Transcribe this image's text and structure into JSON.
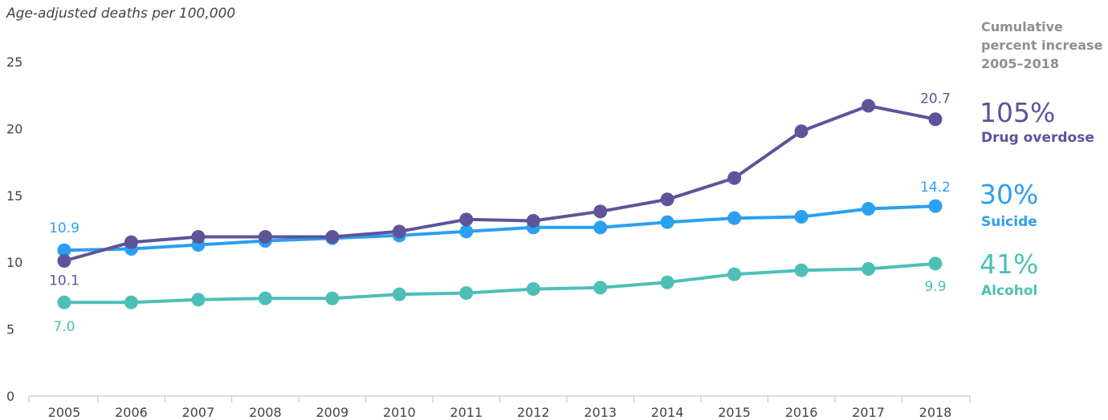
{
  "chart_data": {
    "type": "line",
    "ylabel": "Age-adjusted deaths per 100,000",
    "xlabel": "",
    "ylim": [
      0,
      25
    ],
    "yticks": [
      0,
      5,
      10,
      15,
      20,
      25
    ],
    "x": [
      2005,
      2006,
      2007,
      2008,
      2009,
      2010,
      2011,
      2012,
      2013,
      2014,
      2015,
      2016,
      2017,
      2018
    ],
    "x_tick_labels": [
      "2005",
      "2006",
      "2007",
      "2008",
      "2009",
      "2010",
      "2011",
      "2012",
      "2013",
      "2014",
      "2015",
      "2016",
      "2017",
      "2018"
    ],
    "grid": false,
    "legend_header": [
      "Cumulative",
      "percent increase",
      "2005–2018"
    ],
    "series": [
      {
        "name": "Drug overdose",
        "color": "#5d5499",
        "percent_increase": "105%",
        "values": [
          10.1,
          11.5,
          11.9,
          11.9,
          11.9,
          12.3,
          13.2,
          13.1,
          13.8,
          14.7,
          16.3,
          19.8,
          21.7,
          20.7
        ],
        "start_label": "10.1",
        "end_label": "20.7"
      },
      {
        "name": "Suicide",
        "color": "#2b9ff0",
        "percent_increase": "30%",
        "values": [
          10.9,
          11.0,
          11.3,
          11.6,
          11.8,
          12.0,
          12.3,
          12.6,
          12.6,
          13.0,
          13.3,
          13.4,
          14.0,
          14.2
        ],
        "start_label": "10.9",
        "end_label": "14.2"
      },
      {
        "name": "Alcohol",
        "color": "#4dbfb6",
        "percent_increase": "41%",
        "values": [
          7.0,
          7.0,
          7.2,
          7.3,
          7.3,
          7.6,
          7.7,
          8.0,
          8.1,
          8.5,
          9.1,
          9.4,
          9.5,
          9.9
        ],
        "start_label": "7.0",
        "end_label": "9.9"
      }
    ]
  }
}
